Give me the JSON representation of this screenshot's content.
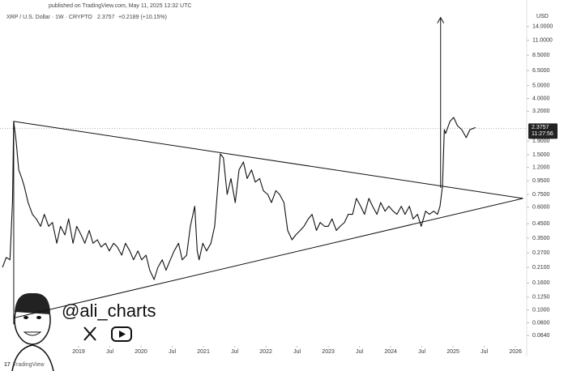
{
  "chart_data": {
    "type": "line",
    "published": "published on TradingView.com, May 11, 2025 12:32 UTC",
    "symbol": "XRP / U.S. Dollar · 1W · CRYPTO",
    "last_price": 2.3757,
    "change": "+0.2189 (+10.15%)",
    "countdown": "11:27:56",
    "currency": "USD",
    "watermark": "@ali_charts",
    "footer": "TradingView",
    "log_scale": true,
    "color": "#111111",
    "xlim": [
      2017.74,
      2026.18
    ],
    "ylim": [
      0.055,
      18
    ],
    "xticks": [
      2019,
      {
        "value": 2019.5,
        "label": "Jul"
      },
      2020,
      {
        "value": 2020.5,
        "label": "Jul"
      },
      2021,
      {
        "value": 2021.5,
        "label": "Jul"
      },
      2022,
      {
        "value": 2022.5,
        "label": "Jul"
      },
      2023,
      {
        "value": 2023.5,
        "label": "Jul"
      },
      2024,
      {
        "value": 2024.5,
        "label": "Jul"
      },
      2025,
      {
        "value": 2025.5,
        "label": "Jul"
      },
      2026
    ],
    "yticks": [
      {
        "value": 0.064,
        "label": "0.0640"
      },
      {
        "value": 0.08,
        "label": "0.0800"
      },
      {
        "value": 0.1,
        "label": "0.1000"
      },
      {
        "value": 0.125,
        "label": "0.1250"
      },
      {
        "value": 0.16,
        "label": "0.1600"
      },
      {
        "value": 0.21,
        "label": "0.2100"
      },
      {
        "value": 0.27,
        "label": "0.2700"
      },
      {
        "value": 0.35,
        "label": "0.3500"
      },
      {
        "value": 0.45,
        "label": "0.4500"
      },
      {
        "value": 0.6,
        "label": "0.6000"
      },
      {
        "value": 0.75,
        "label": "0.7500"
      },
      {
        "value": 0.95,
        "label": "0.9500"
      },
      {
        "value": 1.2,
        "label": "1.2000"
      },
      {
        "value": 1.5,
        "label": "1.5000"
      },
      {
        "value": 1.9,
        "label": "1.9000"
      },
      {
        "value": 3.2,
        "label": "3.2000"
      },
      {
        "value": 4,
        "label": "4.0000"
      },
      {
        "value": 5,
        "label": "5.0000"
      },
      {
        "value": 6.5,
        "label": "6.5000"
      },
      {
        "value": 8.5,
        "label": "8.5000"
      },
      {
        "value": 11,
        "label": "11.0000"
      },
      {
        "value": 14,
        "label": "14.0000"
      }
    ],
    "x": [
      2017.78,
      2017.84,
      2017.9,
      2017.94,
      2017.96,
      2018.0,
      2018.04,
      2018.09,
      2018.13,
      2018.19,
      2018.26,
      2018.32,
      2018.39,
      2018.45,
      2018.52,
      2018.58,
      2018.65,
      2018.71,
      2018.78,
      2018.84,
      2018.91,
      2018.97,
      2019.04,
      2019.1,
      2019.17,
      2019.23,
      2019.3,
      2019.36,
      2019.43,
      2019.49,
      2019.56,
      2019.62,
      2019.69,
      2019.75,
      2019.82,
      2019.88,
      2019.95,
      2020.01,
      2020.08,
      2020.14,
      2020.21,
      2020.27,
      2020.34,
      2020.4,
      2020.47,
      2020.53,
      2020.6,
      2020.66,
      2020.73,
      2020.79,
      2020.86,
      2020.9,
      2020.93,
      2020.99,
      2021.05,
      2021.12,
      2021.18,
      2021.22,
      2021.27,
      2021.32,
      2021.38,
      2021.44,
      2021.51,
      2021.57,
      2021.64,
      2021.7,
      2021.77,
      2021.83,
      2021.9,
      2021.96,
      2022.03,
      2022.09,
      2022.16,
      2022.22,
      2022.29,
      2022.35,
      2022.42,
      2022.48,
      2022.55,
      2022.61,
      2022.68,
      2022.74,
      2022.81,
      2022.87,
      2022.94,
      2023.0,
      2023.06,
      2023.13,
      2023.19,
      2023.26,
      2023.32,
      2023.39,
      2023.45,
      2023.52,
      2023.58,
      2023.65,
      2023.71,
      2023.78,
      2023.84,
      2023.91,
      2023.97,
      2024.04,
      2024.1,
      2024.17,
      2024.23,
      2024.3,
      2024.36,
      2024.43,
      2024.49,
      2024.56,
      2024.62,
      2024.69,
      2024.75,
      2024.79,
      2024.83,
      2024.86,
      2024.88,
      2024.95,
      2025.01,
      2025.07,
      2025.14,
      2025.21,
      2025.27,
      2025.36
    ],
    "values": [
      0.21,
      0.25,
      0.24,
      0.65,
      2.68,
      1.88,
      1.15,
      0.99,
      0.86,
      0.65,
      0.53,
      0.49,
      0.43,
      0.53,
      0.43,
      0.46,
      0.32,
      0.43,
      0.37,
      0.49,
      0.32,
      0.43,
      0.37,
      0.32,
      0.4,
      0.32,
      0.34,
      0.3,
      0.32,
      0.28,
      0.32,
      0.3,
      0.26,
      0.32,
      0.28,
      0.24,
      0.28,
      0.24,
      0.26,
      0.2,
      0.17,
      0.21,
      0.24,
      0.2,
      0.24,
      0.28,
      0.32,
      0.24,
      0.26,
      0.43,
      0.61,
      0.28,
      0.24,
      0.32,
      0.28,
      0.32,
      0.43,
      0.75,
      1.52,
      1.42,
      0.75,
      0.99,
      0.65,
      1.15,
      1.32,
      0.99,
      1.15,
      0.93,
      0.99,
      0.8,
      0.75,
      0.65,
      0.8,
      0.75,
      0.65,
      0.4,
      0.34,
      0.37,
      0.4,
      0.43,
      0.49,
      0.53,
      0.4,
      0.46,
      0.43,
      0.43,
      0.49,
      0.4,
      0.43,
      0.46,
      0.53,
      0.53,
      0.7,
      0.61,
      0.53,
      0.7,
      0.61,
      0.53,
      0.65,
      0.56,
      0.61,
      0.56,
      0.53,
      0.61,
      0.53,
      0.61,
      0.49,
      0.53,
      0.43,
      0.56,
      0.53,
      0.56,
      0.53,
      0.61,
      0.86,
      2.32,
      2.17,
      2.68,
      2.87,
      2.49,
      2.32,
      2.02,
      2.32,
      2.41
    ],
    "trendlines": [
      {
        "x": [
          2017.96,
          2026.12
        ],
        "y": [
          2.68,
          0.7
        ]
      },
      {
        "x": [
          2017.96,
          2026.12
        ],
        "y": [
          0.087,
          0.7
        ]
      },
      {
        "x": [
          2017.96,
          2017.96
        ],
        "y": [
          2.68,
          0.078
        ]
      }
    ],
    "arrow": {
      "x": [
        2024.8,
        2024.8
      ],
      "y": [
        0.84,
        16.4
      ]
    }
  }
}
